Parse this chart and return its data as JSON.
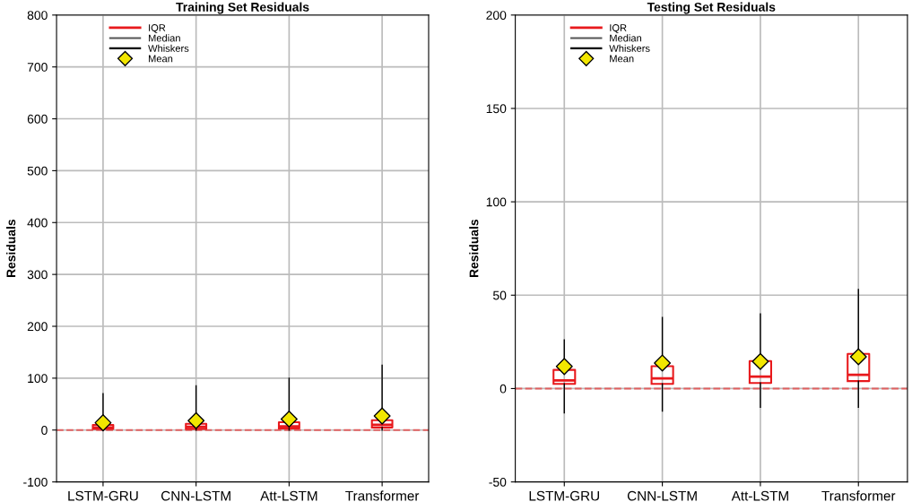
{
  "chart_data": [
    {
      "type": "box",
      "title": "Training Set Residuals",
      "ylabel": "Residuals",
      "categories": [
        "LSTM-GRU",
        "CNN-LSTM",
        "Att-LSTM",
        "Transformer"
      ],
      "ylim": [
        -100,
        800
      ],
      "yticks": [
        -100,
        0,
        100,
        200,
        300,
        400,
        500,
        600,
        700,
        800
      ],
      "grid": true,
      "legend": "top left",
      "series": [
        {
          "name": "IQR",
          "color": "#e8191c",
          "boxes": [
            {
              "low": 0,
              "q1": 2,
              "median": 5,
              "q3": 10,
              "high": 70
            },
            {
              "low": 0,
              "q1": 2,
              "median": 6,
              "q3": 12,
              "high": 85
            },
            {
              "low": 0,
              "q1": 3,
              "median": 7,
              "q3": 15,
              "high": 100
            },
            {
              "low": 0,
              "q1": 5,
              "median": 10,
              "q3": 19,
              "high": 125
            }
          ]
        },
        {
          "name": "Mean",
          "type": "scatter",
          "color": "#f2e600",
          "marker": "diamond",
          "values": [
            14,
            18,
            21,
            27
          ]
        }
      ],
      "annotations": [
        "Median",
        "Whiskers"
      ],
      "ref_lines": [
        {
          "axis": "y",
          "value": 0,
          "color": "#e06060",
          "line_style": "dashed"
        }
      ]
    },
    {
      "type": "box",
      "title": "Testing Set Residuals",
      "ylabel": "Residuals",
      "categories": [
        "LSTM-GRU",
        "CNN-LSTM",
        "Att-LSTM",
        "Transformer"
      ],
      "ylim": [
        -50,
        200
      ],
      "yticks": [
        -50,
        0,
        50,
        100,
        150,
        200
      ],
      "grid": true,
      "legend": "top left",
      "series": [
        {
          "name": "IQR",
          "color": "#e8191c",
          "boxes": [
            {
              "low": -13,
              "q1": 2.5,
              "median": 4.4,
              "q3": 10,
              "high": 26
            },
            {
              "low": -12,
              "q1": 2.5,
              "median": 5.4,
              "q3": 12,
              "high": 38
            },
            {
              "low": -10,
              "q1": 3,
              "median": 6.4,
              "q3": 14.7,
              "high": 40
            },
            {
              "low": -10,
              "q1": 4,
              "median": 7.4,
              "q3": 18.6,
              "high": 53
            }
          ]
        },
        {
          "name": "Mean",
          "type": "scatter",
          "color": "#f2e600",
          "marker": "diamond",
          "values": [
            11.8,
            13.7,
            14.5,
            17
          ]
        }
      ],
      "annotations": [
        "Median",
        "Whiskers"
      ],
      "ref_lines": [
        {
          "axis": "y",
          "value": 0,
          "color": "#e06060",
          "line_style": "dashed"
        }
      ]
    }
  ]
}
